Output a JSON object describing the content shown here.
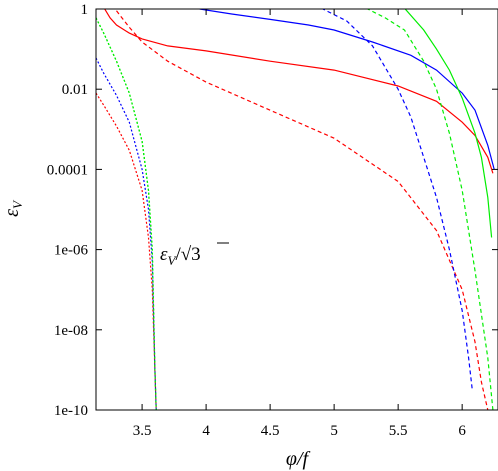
{
  "chart_data": {
    "type": "line",
    "xlabel": "φ/f",
    "ylabel": "ε",
    "ylabel_sub": "V",
    "xlim": [
      3.14,
      6.28
    ],
    "ylim": [
      1e-10,
      1
    ],
    "yscale": "log",
    "grid": false,
    "x_ticks": [
      3.5,
      4,
      4.5,
      5,
      5.5,
      6
    ],
    "x_tick_labels": [
      "3.5",
      "4",
      "4.5",
      "5",
      "5.5",
      "6"
    ],
    "y_ticks": [
      1,
      0.01,
      0.0001,
      1e-06,
      1e-08,
      1e-10
    ],
    "y_tick_labels": [
      "1",
      "0.01",
      "0.0001",
      "1e-06",
      "1e-08",
      "1e-10"
    ],
    "annotation": {
      "text": "εV/√3",
      "parts": {
        "eps": "ε",
        "sub": "V",
        "slash": "/",
        "root": "√",
        "num": "3"
      },
      "x": 3.7,
      "y": 2e-06
    },
    "series": [
      {
        "color": "#ff0000",
        "dash": "solid",
        "x": [
          3.2,
          3.25,
          3.3,
          3.4,
          3.5,
          3.7,
          4.0,
          4.5,
          5.0,
          5.5,
          5.8,
          6.0,
          6.1,
          6.2,
          6.24
        ],
        "y": [
          1.1,
          0.6,
          0.4,
          0.25,
          0.18,
          0.12,
          0.09,
          0.05,
          0.03,
          0.012,
          0.005,
          0.0015,
          0.0007,
          0.0002,
          8e-05
        ]
      },
      {
        "color": "#ff0000",
        "dash": "dashed",
        "x": [
          3.3,
          3.4,
          3.5,
          3.7,
          4.0,
          4.5,
          5.0,
          5.5,
          5.8,
          6.0,
          6.1,
          6.15,
          6.2,
          6.215
        ],
        "y": [
          0.9,
          0.35,
          0.15,
          0.05,
          0.015,
          0.003,
          0.0006,
          5e-05,
          3e-06,
          1e-07,
          5e-09,
          5e-10,
          1e-10,
          3e-11
        ]
      },
      {
        "color": "#ff0000",
        "dash": "dotted",
        "x": [
          3.14,
          3.2,
          3.3,
          3.4,
          3.5,
          3.55,
          3.58,
          3.6,
          3.61
        ],
        "y": [
          0.008,
          0.004,
          0.0012,
          0.0003,
          3e-05,
          2e-06,
          1e-07,
          1e-09,
          1e-10
        ]
      },
      {
        "color": "#0000ff",
        "dash": "solid",
        "x": [
          3.95,
          4.2,
          4.5,
          4.8,
          5.0,
          5.3,
          5.6,
          5.8,
          6.0,
          6.1,
          6.2,
          6.25
        ],
        "y": [
          1.0,
          0.75,
          0.55,
          0.4,
          0.3,
          0.15,
          0.07,
          0.03,
          0.008,
          0.003,
          0.0004,
          0.0001
        ]
      },
      {
        "color": "#0000ff",
        "dash": "dashed",
        "x": [
          4.9,
          5.1,
          5.3,
          5.5,
          5.6,
          5.7,
          5.8,
          5.9,
          6.0,
          6.05,
          6.08
        ],
        "y": [
          1.05,
          0.5,
          0.12,
          0.01,
          0.002,
          0.0002,
          2e-05,
          1e-06,
          3e-08,
          2e-09,
          3e-10
        ]
      },
      {
        "color": "#0000ff",
        "dash": "dotted",
        "x": [
          3.14,
          3.2,
          3.3,
          3.4,
          3.5,
          3.55,
          3.58,
          3.6,
          3.61
        ],
        "y": [
          0.06,
          0.025,
          0.007,
          0.0015,
          0.0001,
          1e-05,
          5e-07,
          1e-09,
          1e-10
        ]
      },
      {
        "color": "#00ee00",
        "dash": "solid",
        "x": [
          5.55,
          5.7,
          5.8,
          5.9,
          6.0,
          6.1,
          6.15,
          6.2,
          6.23
        ],
        "y": [
          1.05,
          0.3,
          0.1,
          0.03,
          0.006,
          0.0008,
          0.0002,
          2e-05,
          2e-06
        ]
      },
      {
        "color": "#00ee00",
        "dash": "dashed",
        "x": [
          5.25,
          5.4,
          5.55,
          5.7,
          5.8,
          5.9,
          6.0,
          6.1,
          6.2,
          6.24
        ],
        "y": [
          1.05,
          0.6,
          0.3,
          0.05,
          0.01,
          0.0008,
          3e-05,
          3e-07,
          2e-09,
          1e-10
        ]
      },
      {
        "color": "#00ee00",
        "dash": "dotted",
        "x": [
          3.14,
          3.2,
          3.3,
          3.4,
          3.5,
          3.55,
          3.58,
          3.6,
          3.61
        ],
        "y": [
          0.6,
          0.25,
          0.05,
          0.008,
          0.0005,
          3e-05,
          1e-06,
          1e-09,
          1e-10
        ]
      },
      {
        "color": "#00ee00",
        "dash": "dotted",
        "x": [
          3.14,
          3.2,
          3.3,
          3.4,
          3.5,
          3.55,
          3.58,
          3.6,
          3.61
        ],
        "y": [
          0.6,
          0.25,
          0.05,
          0.008,
          0.0005,
          3e-05,
          1e-06,
          1e-09,
          1e-10
        ]
      }
    ]
  }
}
